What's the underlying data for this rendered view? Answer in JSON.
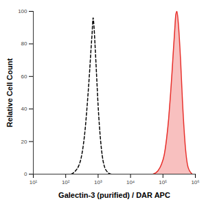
{
  "chart_data": {
    "type": "line",
    "xlabel": "Galectin-3 (purified) / DAR APC",
    "ylabel": "Relative Cell Count",
    "log": "x",
    "grid": false,
    "xlim": [
      10,
      1000000
    ],
    "xticks": [
      {
        "value": 10,
        "label": "10¹"
      },
      {
        "value": 100,
        "label": "10²"
      },
      {
        "value": 1000,
        "label": "10³"
      },
      {
        "value": 10000,
        "label": "10⁴"
      },
      {
        "value": 100000,
        "label": "10⁵"
      },
      {
        "value": 1000000,
        "label": "10⁶"
      }
    ],
    "ylim": [
      0,
      100
    ],
    "yticks": [
      0,
      20,
      40,
      60,
      80,
      100
    ],
    "series": [
      {
        "type": "line",
        "color": "#000000",
        "line_style": "dashed",
        "x": [
          150,
          200,
          250,
          300,
          350,
          400,
          450,
          500,
          550,
          600,
          650,
          700,
          750,
          800,
          900,
          1000,
          1200,
          1500,
          2000,
          2500
        ],
        "values": [
          0,
          2,
          5,
          10,
          18,
          28,
          40,
          52,
          64,
          76,
          86,
          96,
          90,
          80,
          60,
          42,
          20,
          6,
          1,
          0
        ]
      },
      {
        "type": "area",
        "color": "#e8302c",
        "line_style": "solid",
        "x": [
          50000,
          70000,
          90000,
          110000,
          130000,
          150000,
          170000,
          190000,
          210000,
          230000,
          250000,
          270000,
          300000,
          350000,
          400000,
          500000,
          600000,
          800000
        ],
        "values": [
          0,
          2,
          6,
          12,
          22,
          34,
          48,
          62,
          76,
          88,
          98,
          100,
          92,
          70,
          45,
          15,
          4,
          0
        ]
      }
    ]
  }
}
